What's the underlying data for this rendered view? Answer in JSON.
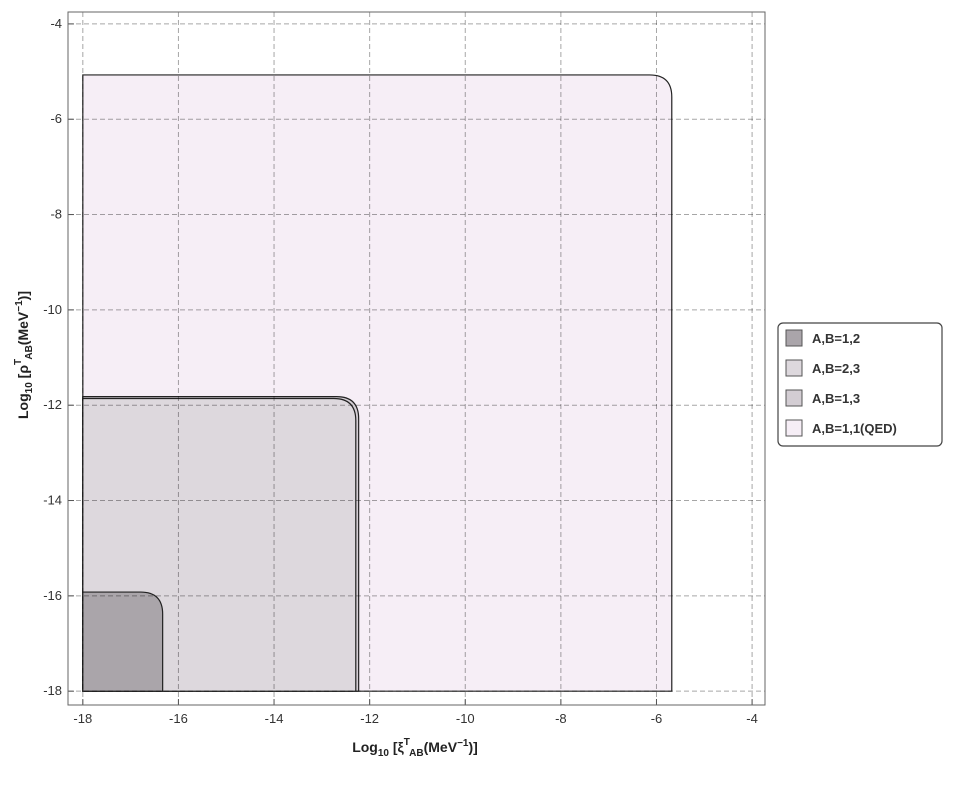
{
  "chart_data": {
    "type": "region",
    "xlabel_parts": [
      "Log",
      "10",
      " [ξ",
      "T",
      "AB",
      "(MeV",
      "−1",
      ")]"
    ],
    "ylabel_parts": [
      "Log",
      "10",
      " [ρ",
      "T",
      "AB",
      "(MeV",
      "−1",
      ")]"
    ],
    "xlim": [
      -18.31,
      -3.73
    ],
    "ylim": [
      -18.29,
      -3.75
    ],
    "xticks": [
      -18,
      -16,
      -14,
      -12,
      -10,
      -8,
      -6,
      -4
    ],
    "yticks": [
      -18,
      -16,
      -14,
      -12,
      -10,
      -8,
      -6,
      -4
    ],
    "grid": true,
    "series": [
      {
        "name": "A,B=1,2",
        "color": "#aaa5aa",
        "xrange": [
          -18,
          -16.33
        ],
        "yrange": [
          -18,
          -15.92
        ]
      },
      {
        "name": "A,B=2,3",
        "color": "#ddd8dd",
        "xrange": [
          -18,
          -12.29
        ],
        "yrange": [
          -18,
          -11.86
        ]
      },
      {
        "name": "A,B=1,3",
        "color": "#d3cdd3",
        "xrange": [
          -18,
          -12.23
        ],
        "yrange": [
          -18,
          -11.82
        ]
      },
      {
        "name": "A,B=1,1(QED)",
        "color": "#f6eef6",
        "xrange": [
          -18,
          -5.68
        ],
        "yrange": [
          -18,
          -5.07
        ]
      }
    ]
  }
}
